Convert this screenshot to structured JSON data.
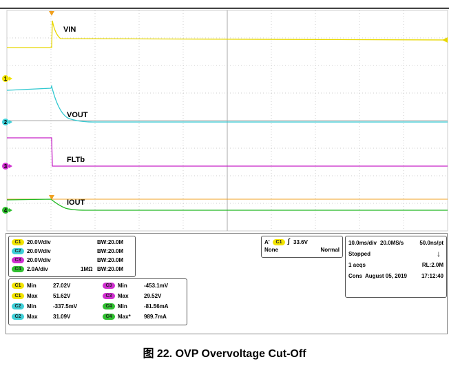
{
  "waveform_labels": [
    "VIN",
    "VOUT",
    "FLTb",
    "IOUT"
  ],
  "channels": [
    {
      "badge": "C1",
      "color": "#f2e400",
      "scale": "20.0V/div",
      "impedance": "",
      "bw": "BW:20.0M"
    },
    {
      "badge": "C2",
      "color": "#3fd0d8",
      "scale": "20.0V/div",
      "impedance": "",
      "bw": "BW:20.0M"
    },
    {
      "badge": "C3",
      "color": "#d030d0",
      "scale": "20.0V/div",
      "impedance": "",
      "bw": "BW:20.0M"
    },
    {
      "badge": "C4",
      "color": "#30c030",
      "scale": "2.0A/div",
      "impedance": "1MΩ",
      "bw": "BW:20.0M"
    }
  ],
  "measurements": [
    [
      "C1",
      "Min",
      "27.02V",
      "C3",
      "Min",
      "-453.1mV"
    ],
    [
      "C1",
      "Max",
      "51.62V",
      "C3",
      "Max",
      "29.52V"
    ],
    [
      "C2",
      "Min",
      "-337.5mV",
      "C4",
      "Min",
      "-81.56mA"
    ],
    [
      "C2",
      "Max",
      "31.09V",
      "C4",
      "Max*",
      "989.7mA"
    ]
  ],
  "trigger": {
    "source_prefix": "A'",
    "badge": "C1",
    "level": "33.6V",
    "coupling": "None",
    "mode": "Normal"
  },
  "timebase": {
    "scale": "10.0ms/div",
    "rate": "20.0MS/s",
    "resolution": "50.0ns/pt",
    "state": "Stopped",
    "acqs": "1 acqs",
    "record": "RL:2.0M",
    "cons": "Cons",
    "date": "August 05, 2019",
    "time": "17:12:40"
  },
  "channel_markers": [
    "1",
    "2",
    "3",
    "4"
  ],
  "caption": "图 22. OVP Overvoltage Cut-Off"
}
